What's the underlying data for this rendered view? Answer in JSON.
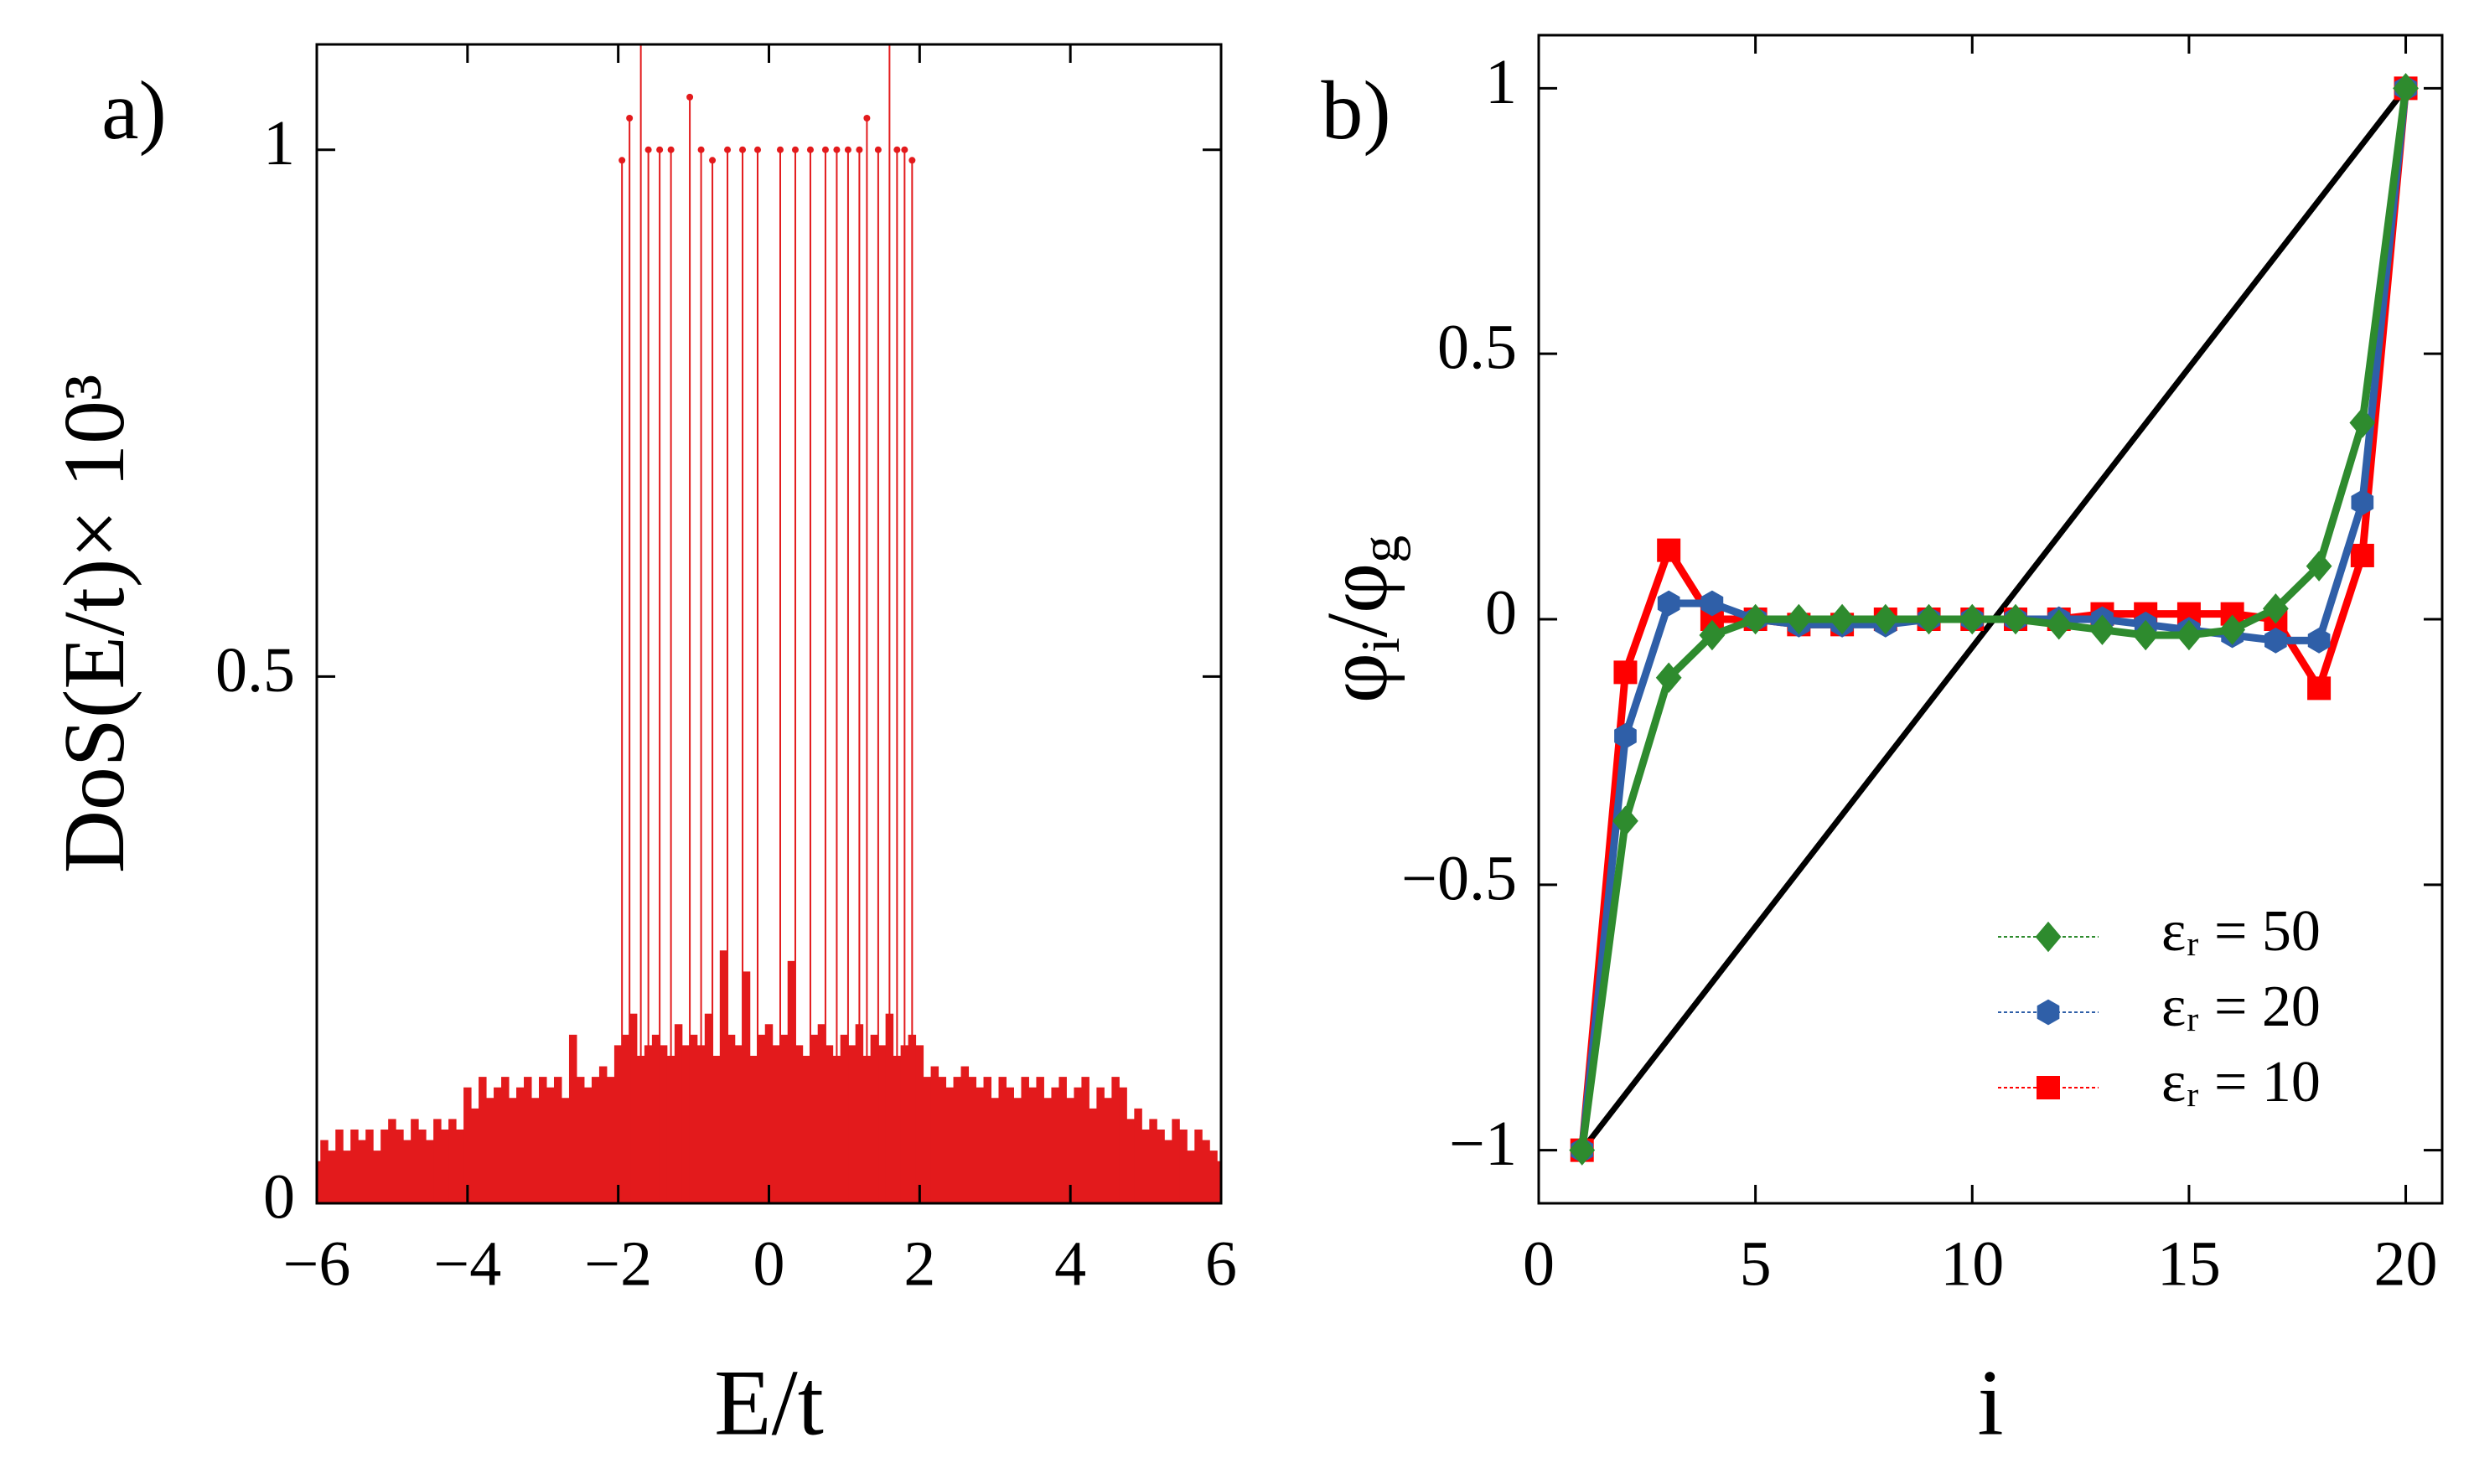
{
  "chart_data": [
    {
      "type": "stem",
      "panel_label": "a)",
      "xlabel": "E/t",
      "ylabel": "DoS(E/t)× 10³",
      "xlim": [
        -6,
        6
      ],
      "ylim": [
        0,
        1.1
      ],
      "xticks": [
        {
          "value": -6,
          "label": "−6"
        },
        {
          "value": -4,
          "label": "−4"
        },
        {
          "value": -2,
          "label": "−2"
        },
        0,
        2,
        4,
        6
      ],
      "yticks": [
        0,
        0.5,
        1
      ],
      "series": [
        {
          "color": "#e31a1c",
          "marker": "none",
          "x": [
            -6,
            -5.9,
            -5.8,
            -5.7,
            -5.6,
            -5.5,
            -5.4,
            -5.3,
            -5.2,
            -5.1,
            -5,
            -4.9,
            -4.8,
            -4.7,
            -4.6,
            -4.5,
            -4.4,
            -4.3,
            -4.2,
            -4.1,
            -4,
            -3.9,
            -3.8,
            -3.7,
            -3.6,
            -3.5,
            -3.4,
            -3.3,
            -3.2,
            -3.1,
            -3,
            -2.9,
            -2.8,
            -2.7,
            -2.6,
            -2.5,
            -2.4,
            -2.3,
            -2.2,
            -2.1,
            -2,
            -1.9,
            -1.8,
            -1.7,
            -1.6,
            -1.5,
            -1.4,
            -1.3,
            -1.2,
            -1.1,
            -1,
            -0.9,
            -0.8,
            -0.7,
            -0.6,
            -0.5,
            -0.4,
            -0.3,
            -0.2,
            -0.1,
            0,
            0.1,
            0.2,
            0.3,
            0.4,
            0.5,
            0.6,
            0.7,
            0.8,
            0.9,
            1,
            1.1,
            1.2,
            1.3,
            1.4,
            1.5,
            1.6,
            1.7,
            1.8,
            1.9,
            2,
            2.1,
            2.2,
            2.3,
            2.4,
            2.5,
            2.6,
            2.7,
            2.8,
            2.9,
            3,
            3.1,
            3.2,
            3.3,
            3.4,
            3.5,
            3.6,
            3.7,
            3.8,
            3.9,
            4,
            4.1,
            4.2,
            4.3,
            4.4,
            4.5,
            4.6,
            4.7,
            4.8,
            4.9,
            5,
            5.1,
            5.2,
            5.3,
            5.4,
            5.5,
            5.6,
            5.7,
            5.8,
            5.9,
            6
          ],
          "values": [
            0.04,
            0.06,
            0.05,
            0.07,
            0.05,
            0.07,
            0.06,
            0.07,
            0.05,
            0.07,
            0.08,
            0.07,
            0.06,
            0.08,
            0.07,
            0.06,
            0.08,
            0.07,
            0.08,
            0.07,
            0.11,
            0.09,
            0.12,
            0.1,
            0.11,
            0.12,
            0.1,
            0.11,
            0.12,
            0.1,
            0.12,
            0.11,
            0.12,
            0.1,
            0.16,
            0.12,
            0.11,
            0.12,
            0.13,
            0.12,
            0.15,
            0.16,
            0.18,
            0.14,
            0.15,
            0.16,
            0.15,
            0.14,
            0.17,
            0.15,
            0.16,
            0.15,
            0.18,
            0.14,
            0.24,
            0.16,
            0.15,
            0.22,
            0.14,
            0.16,
            0.17,
            0.15,
            0.16,
            0.23,
            0.15,
            0.14,
            0.16,
            0.17,
            0.15,
            0.14,
            0.16,
            0.15,
            0.17,
            0.14,
            0.16,
            0.15,
            0.18,
            0.14,
            0.15,
            0.16,
            0.15,
            0.12,
            0.13,
            0.12,
            0.11,
            0.12,
            0.13,
            0.12,
            0.11,
            0.12,
            0.1,
            0.12,
            0.11,
            0.1,
            0.12,
            0.11,
            0.12,
            0.1,
            0.11,
            0.12,
            0.1,
            0.11,
            0.12,
            0.09,
            0.11,
            0.1,
            0.12,
            0.11,
            0.08,
            0.09,
            0.07,
            0.08,
            0.07,
            0.06,
            0.08,
            0.07,
            0.05,
            0.07,
            0.06,
            0.05,
            0.04
          ]
        },
        {
          "color": "#e31a1c",
          "marker": "circle",
          "x": [
            -1.95,
            -1.85,
            -1.7,
            -1.6,
            -1.45,
            -1.3,
            -1.05,
            -0.9,
            -0.75,
            -0.55,
            -0.35,
            -0.15,
            0.15,
            0.35,
            0.55,
            0.75,
            0.9,
            1.05,
            1.2,
            1.3,
            1.45,
            1.6,
            1.7,
            1.8,
            1.9
          ],
          "values": [
            0.99,
            1.03,
            1.12,
            1.0,
            1.0,
            1.0,
            1.05,
            1.0,
            0.99,
            1.0,
            1.0,
            1.0,
            1.0,
            1.0,
            1.0,
            1.0,
            1.0,
            1.0,
            1.0,
            1.03,
            1.0,
            1.12,
            1.0,
            1.0,
            0.99
          ]
        }
      ]
    },
    {
      "type": "line",
      "panel_label": "b)",
      "xlabel": "i",
      "ylabel": [
        "φ",
        "i",
        "/φ",
        "g"
      ],
      "xlim": [
        0,
        20.84
      ],
      "ylim": [
        -1.1,
        1.1
      ],
      "xticks": [
        0,
        5,
        10,
        15,
        20
      ],
      "yticks": [
        {
          "value": -1,
          "label": "−1"
        },
        {
          "value": -0.5,
          "label": "−0.5"
        },
        0,
        0.5,
        1
      ],
      "legend": "lower right",
      "series": [
        {
          "color": "#000000",
          "marker": "none",
          "x": [
            1,
            20
          ],
          "values": [
            -1,
            1
          ]
        },
        {
          "name": "εᵣ = 10",
          "color": "#ff0000",
          "marker": "square",
          "x": [
            1,
            2,
            3,
            4,
            5,
            6,
            7,
            8,
            9,
            10,
            11,
            12,
            13,
            14,
            15,
            16,
            17,
            18,
            19,
            20
          ],
          "values": [
            -1,
            -0.1,
            0.13,
            0.0,
            0.0,
            -0.01,
            -0.01,
            0.0,
            0,
            0,
            0,
            0,
            0.01,
            0.01,
            0.01,
            0.01,
            0.0,
            -0.13,
            0.12,
            1
          ]
        },
        {
          "name": "εᵣ = 20",
          "color": "#2f5fa8",
          "marker": "hexagon",
          "x": [
            1,
            2,
            3,
            4,
            5,
            6,
            7,
            8,
            9,
            10,
            11,
            12,
            13,
            14,
            15,
            16,
            17,
            18,
            19,
            20
          ],
          "values": [
            -1,
            -0.22,
            0.03,
            0.03,
            0.0,
            -0.01,
            -0.01,
            -0.01,
            0,
            0,
            0,
            0,
            0,
            -0.01,
            -0.02,
            -0.03,
            -0.04,
            -0.04,
            0.22,
            1
          ]
        },
        {
          "name": "εᵣ = 50",
          "color": "#2e8b2e",
          "marker": "diamond",
          "x": [
            1,
            2,
            3,
            4,
            5,
            6,
            7,
            8,
            9,
            10,
            11,
            12,
            13,
            14,
            15,
            16,
            17,
            18,
            19,
            20
          ],
          "values": [
            -1,
            -0.38,
            -0.11,
            -0.03,
            0.0,
            0.0,
            0.0,
            0.0,
            0.0,
            0.0,
            0.0,
            -0.01,
            -0.02,
            -0.03,
            -0.03,
            -0.02,
            0.02,
            0.1,
            0.37,
            1
          ]
        }
      ]
    }
  ]
}
